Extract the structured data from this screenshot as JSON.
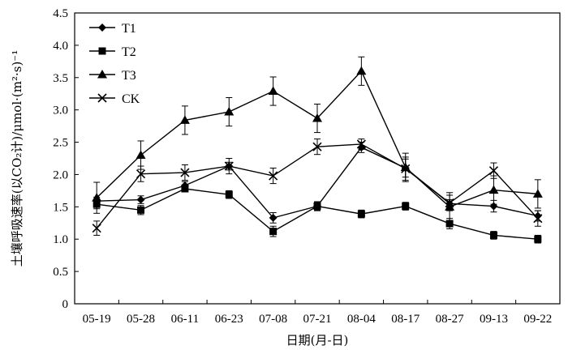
{
  "chart_data": {
    "type": "line",
    "title": "",
    "xlabel": "日期(月-日)",
    "ylabel": "土壤呼吸速率(以CO₂计)/μmol·(m²·s)⁻¹",
    "categories": [
      "05-19",
      "05-28",
      "06-11",
      "06-23",
      "07-08",
      "07-21",
      "08-04",
      "08-17",
      "08-27",
      "09-13",
      "09-22"
    ],
    "ylim": [
      0,
      4.5
    ],
    "yticks": [
      "0",
      "0.5",
      "1.0",
      "1.5",
      "2.0",
      "2.5",
      "3.0",
      "3.5",
      "4.0",
      "4.5"
    ],
    "grid": false,
    "legend_position": "top-left",
    "series": [
      {
        "name": "T1",
        "marker": "diamond",
        "values": [
          1.59,
          1.61,
          1.83,
          2.13,
          1.33,
          1.51,
          2.42,
          2.1,
          1.55,
          1.51,
          1.36
        ],
        "errors": [
          0.06,
          0.06,
          0.06,
          0.06,
          0.08,
          0.07,
          0.08,
          0.14,
          0.06,
          0.09,
          0.08
        ]
      },
      {
        "name": "T2",
        "marker": "square",
        "values": [
          1.54,
          1.45,
          1.78,
          1.69,
          1.12,
          1.51,
          1.39,
          1.51,
          1.24,
          1.06,
          1.0
        ],
        "errors": [
          0.07,
          0.07,
          0.05,
          0.06,
          0.08,
          0.06,
          0.06,
          0.06,
          0.08,
          0.06,
          0.06
        ]
      },
      {
        "name": "T3",
        "marker": "triangle",
        "values": [
          1.64,
          2.3,
          2.84,
          2.97,
          3.29,
          2.87,
          3.6,
          2.11,
          1.5,
          1.76,
          1.7
        ],
        "errors": [
          0.24,
          0.22,
          0.22,
          0.22,
          0.22,
          0.22,
          0.22,
          0.22,
          0.22,
          0.22,
          0.22
        ]
      },
      {
        "name": "CK",
        "marker": "cross",
        "values": [
          1.17,
          2.01,
          2.03,
          2.13,
          1.98,
          2.43,
          2.47,
          2.09,
          1.56,
          2.06,
          1.32
        ],
        "errors": [
          0.11,
          0.12,
          0.12,
          0.12,
          0.12,
          0.12,
          0.08,
          0.18,
          0.12,
          0.12,
          0.12
        ]
      }
    ]
  }
}
